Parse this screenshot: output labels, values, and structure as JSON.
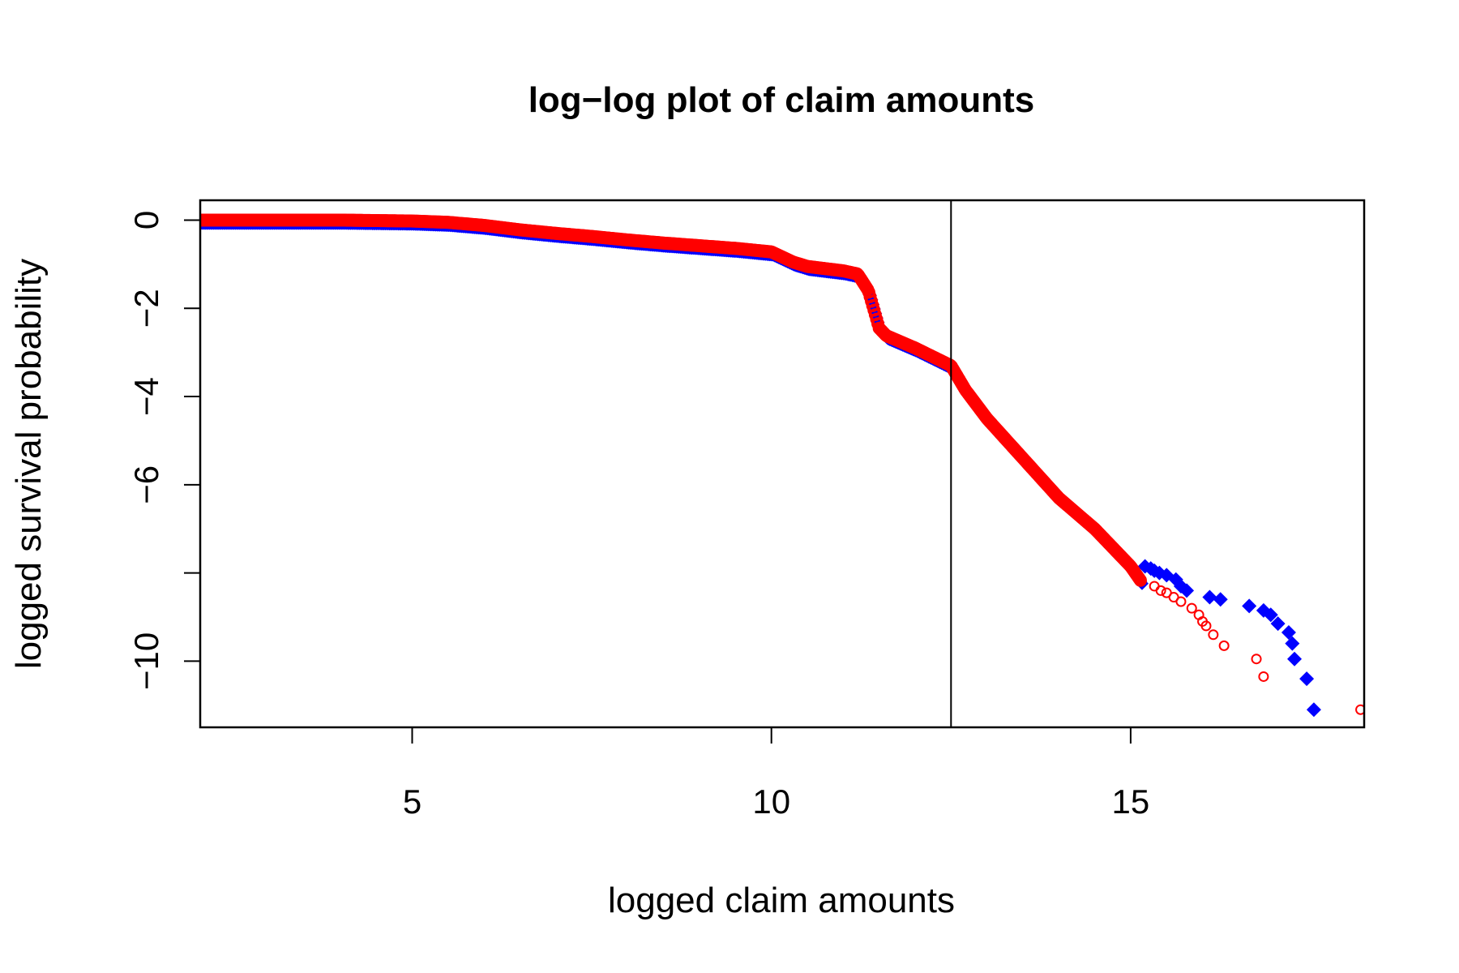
{
  "chart_data": {
    "type": "scatter",
    "title": "log−log plot of claim amounts",
    "xlabel": "logged claim amounts",
    "ylabel": "logged survival probability",
    "xlim": [
      2.05,
      18.25
    ],
    "ylim": [
      -11.5,
      0.45
    ],
    "xticks": [
      5,
      10,
      15
    ],
    "xtick_labels": [
      "5",
      "10",
      "15"
    ],
    "yticks": [
      0,
      -2,
      -4,
      -6,
      -8,
      -10
    ],
    "ytick_labels": [
      "0",
      "−2",
      "−4",
      "−6",
      "",
      "−10"
    ],
    "vline_x": 12.5,
    "grid": false,
    "legend": "none",
    "colors": {
      "series_a": "#0000ff",
      "series_b": "#ff0000",
      "frame": "#000000"
    },
    "curve": [
      [
        2.05,
        0.0
      ],
      [
        3.0,
        0.0
      ],
      [
        4.0,
        0.0
      ],
      [
        5.0,
        -0.02
      ],
      [
        5.5,
        -0.05
      ],
      [
        6.0,
        -0.12
      ],
      [
        6.5,
        -0.22
      ],
      [
        7.0,
        -0.3
      ],
      [
        7.5,
        -0.37
      ],
      [
        8.0,
        -0.45
      ],
      [
        8.5,
        -0.52
      ],
      [
        9.0,
        -0.58
      ],
      [
        9.5,
        -0.64
      ],
      [
        10.0,
        -0.72
      ],
      [
        10.3,
        -0.95
      ],
      [
        10.5,
        -1.05
      ],
      [
        11.0,
        -1.15
      ],
      [
        11.2,
        -1.22
      ],
      [
        11.35,
        -1.6
      ],
      [
        11.5,
        -2.45
      ],
      [
        11.6,
        -2.62
      ],
      [
        12.0,
        -2.9
      ],
      [
        12.5,
        -3.3
      ],
      [
        12.7,
        -3.85
      ],
      [
        13.0,
        -4.5
      ],
      [
        13.5,
        -5.4
      ],
      [
        14.0,
        -6.3
      ],
      [
        14.5,
        -7.0
      ],
      [
        15.0,
        -7.85
      ],
      [
        15.15,
        -8.2
      ]
    ],
    "series": [
      {
        "marker": "diamond",
        "color": "#0000ff",
        "tail_points": [
          [
            15.2,
            -7.85
          ],
          [
            15.28,
            -7.9
          ],
          [
            15.33,
            -7.95
          ],
          [
            15.4,
            -8.0
          ],
          [
            15.5,
            -8.05
          ],
          [
            15.63,
            -8.15
          ],
          [
            15.7,
            -8.3
          ],
          [
            15.78,
            -8.4
          ],
          [
            16.1,
            -8.55
          ],
          [
            16.25,
            -8.6
          ],
          [
            16.65,
            -8.75
          ],
          [
            16.85,
            -8.85
          ],
          [
            16.95,
            -8.95
          ],
          [
            17.05,
            -9.15
          ],
          [
            17.2,
            -9.35
          ],
          [
            17.25,
            -9.6
          ],
          [
            17.28,
            -9.95
          ],
          [
            17.45,
            -10.4
          ],
          [
            17.55,
            -11.1
          ]
        ]
      },
      {
        "marker": "open-circle",
        "color": "#ff0000",
        "tail_points": [
          [
            15.33,
            -8.3
          ],
          [
            15.42,
            -8.4
          ],
          [
            15.5,
            -8.45
          ],
          [
            15.6,
            -8.55
          ],
          [
            15.7,
            -8.65
          ],
          [
            15.85,
            -8.8
          ],
          [
            15.95,
            -8.95
          ],
          [
            16.0,
            -9.1
          ],
          [
            16.05,
            -9.2
          ],
          [
            16.15,
            -9.4
          ],
          [
            16.3,
            -9.65
          ],
          [
            16.75,
            -9.95
          ],
          [
            16.85,
            -10.35
          ],
          [
            18.2,
            -11.1
          ]
        ]
      }
    ]
  }
}
